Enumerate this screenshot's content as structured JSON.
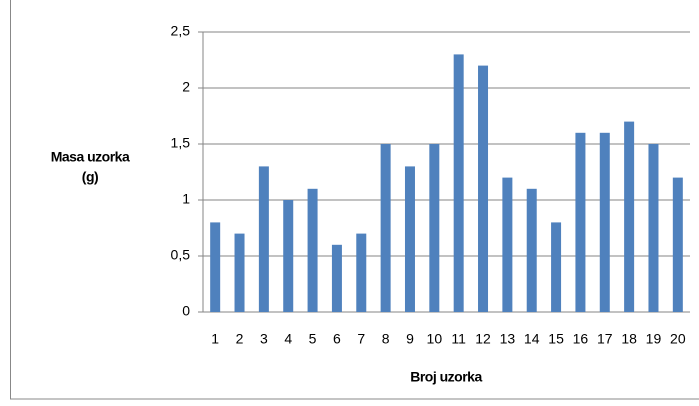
{
  "chart_data": {
    "type": "bar",
    "ylabel": [
      "Masa uzorka",
      "(g)"
    ],
    "xlabel": "Broj uzorka",
    "categories": [
      "1",
      "2",
      "3",
      "4",
      "5",
      "6",
      "7",
      "8",
      "9",
      "10",
      "11",
      "12",
      "13",
      "14",
      "15",
      "16",
      "17",
      "18",
      "19",
      "20"
    ],
    "values": [
      0.8,
      0.7,
      1.3,
      1.0,
      1.1,
      0.6,
      0.7,
      1.5,
      1.3,
      1.5,
      2.3,
      2.2,
      1.2,
      1.1,
      0.8,
      1.6,
      1.6,
      1.7,
      1.5,
      1.2
    ],
    "color": "#4f81bd",
    "ylim": [
      0,
      2.5
    ],
    "yticks": [
      0,
      {
        "value": 0.5,
        "label": "0,5"
      },
      1,
      {
        "value": 1.5,
        "label": "1,5"
      },
      2,
      {
        "value": 2.5,
        "label": "2,5"
      }
    ],
    "grid": true
  }
}
